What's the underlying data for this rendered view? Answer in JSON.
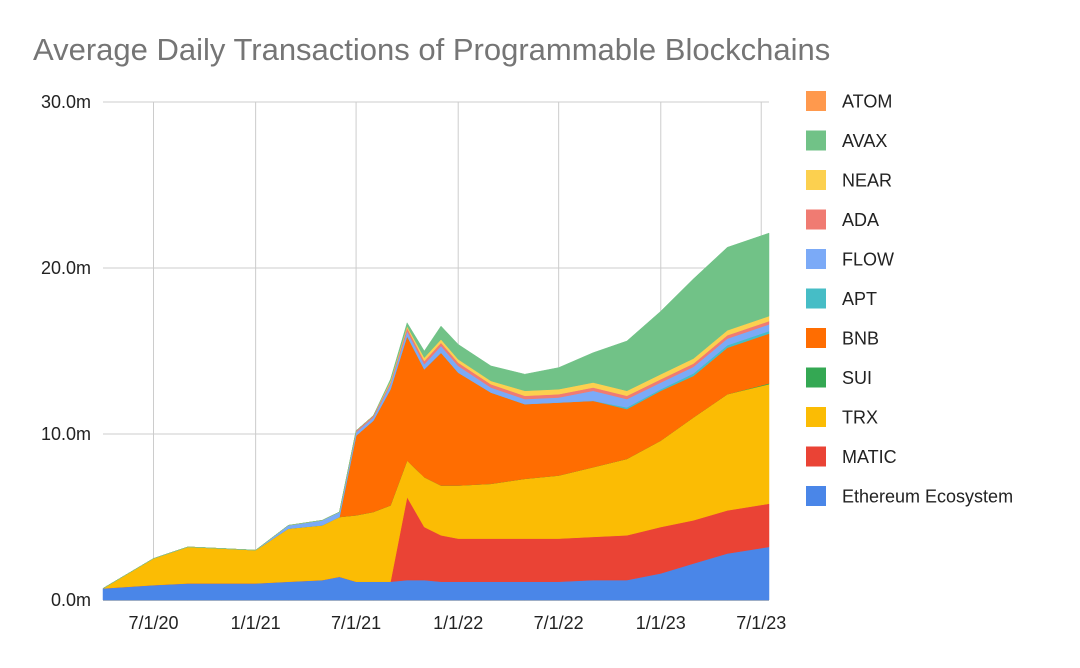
{
  "chart_data": {
    "type": "area",
    "stacked": true,
    "title": "Average Daily Transactions of Programmable Blockchains",
    "xlabel": "",
    "ylabel": "",
    "ylim": [
      0,
      30
    ],
    "y_unit": "m",
    "y_ticks": [
      {
        "value": 0,
        "label": "0.0m"
      },
      {
        "value": 10,
        "label": "10.0m"
      },
      {
        "value": 20,
        "label": "20.0m"
      },
      {
        "value": 30,
        "label": "30.0m"
      }
    ],
    "x_range": [
      "2020-04-01",
      "2023-07-15"
    ],
    "x_ticks": [
      {
        "date": "2020-07-01",
        "label": "7/1/20"
      },
      {
        "date": "2021-01-01",
        "label": "1/1/21"
      },
      {
        "date": "2021-07-01",
        "label": "7/1/21"
      },
      {
        "date": "2022-01-01",
        "label": "1/1/22"
      },
      {
        "date": "2022-07-01",
        "label": "7/1/22"
      },
      {
        "date": "2023-01-01",
        "label": "1/1/23"
      },
      {
        "date": "2023-07-01",
        "label": "7/1/23"
      }
    ],
    "grid": true,
    "legend_position": "right",
    "x": [
      "2020-04-01",
      "2020-07-01",
      "2020-09-01",
      "2020-11-01",
      "2021-01-01",
      "2021-03-01",
      "2021-05-01",
      "2021-06-01",
      "2021-07-01",
      "2021-08-01",
      "2021-09-01",
      "2021-10-01",
      "2021-11-01",
      "2021-12-01",
      "2022-01-01",
      "2022-03-01",
      "2022-05-01",
      "2022-07-01",
      "2022-09-01",
      "2022-11-01",
      "2023-01-01",
      "2023-03-01",
      "2023-05-01",
      "2023-07-15"
    ],
    "series": [
      {
        "name": "Ethereum Ecosystem",
        "color": "#4a86e8",
        "values": [
          0.7,
          0.9,
          1.0,
          1.0,
          1.0,
          1.1,
          1.2,
          1.4,
          1.1,
          1.1,
          1.1,
          1.2,
          1.2,
          1.1,
          1.1,
          1.1,
          1.1,
          1.1,
          1.2,
          1.2,
          1.6,
          2.2,
          2.8,
          3.2
        ]
      },
      {
        "name": "MATIC",
        "color": "#ea4335",
        "values": [
          0,
          0,
          0,
          0,
          0,
          0,
          0,
          0,
          0,
          0,
          0,
          5.0,
          3.2,
          2.8,
          2.6,
          2.6,
          2.6,
          2.6,
          2.6,
          2.7,
          2.8,
          2.6,
          2.6,
          2.6
        ]
      },
      {
        "name": "TRX",
        "color": "#fbbc04",
        "values": [
          0,
          1.6,
          2.2,
          2.1,
          2.0,
          3.2,
          3.3,
          3.6,
          4.0,
          4.2,
          4.6,
          2.2,
          3.0,
          3.0,
          3.2,
          3.3,
          3.6,
          3.8,
          4.2,
          4.6,
          5.2,
          6.2,
          7.0,
          7.2
        ]
      },
      {
        "name": "SUI",
        "color": "#34a853",
        "values": [
          0,
          0,
          0,
          0,
          0,
          0,
          0,
          0,
          0,
          0,
          0,
          0,
          0,
          0,
          0,
          0,
          0,
          0,
          0,
          0,
          0,
          0,
          0,
          0.05
        ]
      },
      {
        "name": "BNB",
        "color": "#ff6d01",
        "values": [
          0,
          0,
          0,
          0,
          0,
          0,
          0,
          0,
          4.8,
          5.5,
          7.0,
          7.5,
          6.5,
          8.0,
          6.8,
          5.5,
          4.5,
          4.4,
          4.0,
          3.0,
          3.0,
          2.5,
          2.8,
          3.0
        ]
      },
      {
        "name": "APT",
        "color": "#46bdc6",
        "values": [
          0,
          0,
          0,
          0,
          0,
          0,
          0,
          0,
          0,
          0,
          0,
          0,
          0,
          0,
          0,
          0,
          0,
          0,
          0,
          0.1,
          0.1,
          0.15,
          0.15,
          0.15
        ]
      },
      {
        "name": "FLOW",
        "color": "#7baaf7",
        "values": [
          0,
          0,
          0,
          0,
          0,
          0.2,
          0.3,
          0.3,
          0.2,
          0.2,
          0.3,
          0.3,
          0.3,
          0.4,
          0.4,
          0.3,
          0.3,
          0.3,
          0.6,
          0.5,
          0.4,
          0.4,
          0.4,
          0.4
        ]
      },
      {
        "name": "ADA",
        "color": "#f07b72",
        "values": [
          0,
          0,
          0,
          0,
          0,
          0,
          0,
          0,
          0.1,
          0.1,
          0.1,
          0.2,
          0.2,
          0.2,
          0.2,
          0.2,
          0.2,
          0.2,
          0.2,
          0.2,
          0.2,
          0.2,
          0.2,
          0.2
        ]
      },
      {
        "name": "NEAR",
        "color": "#fcd04f",
        "values": [
          0,
          0,
          0,
          0,
          0,
          0,
          0,
          0,
          0,
          0,
          0.1,
          0.1,
          0.2,
          0.2,
          0.2,
          0.2,
          0.3,
          0.3,
          0.3,
          0.3,
          0.3,
          0.3,
          0.3,
          0.3
        ]
      },
      {
        "name": "AVAX",
        "color": "#71c287",
        "values": [
          0,
          0,
          0,
          0,
          0,
          0,
          0,
          0,
          0,
          0,
          0.1,
          0.2,
          0.4,
          0.8,
          0.9,
          0.9,
          1.0,
          1.3,
          1.8,
          3.0,
          3.8,
          4.8,
          5.0,
          5.0
        ]
      },
      {
        "name": "ATOM",
        "color": "#ff994d",
        "values": [
          0,
          0,
          0,
          0,
          0,
          0,
          0,
          0,
          0,
          0,
          0,
          0,
          0,
          0,
          0,
          0,
          0,
          0,
          0,
          0,
          0,
          0,
          0,
          0
        ]
      }
    ],
    "legend_order": [
      "ATOM",
      "AVAX",
      "NEAR",
      "ADA",
      "FLOW",
      "APT",
      "BNB",
      "SUI",
      "TRX",
      "MATIC",
      "Ethereum Ecosystem"
    ]
  }
}
